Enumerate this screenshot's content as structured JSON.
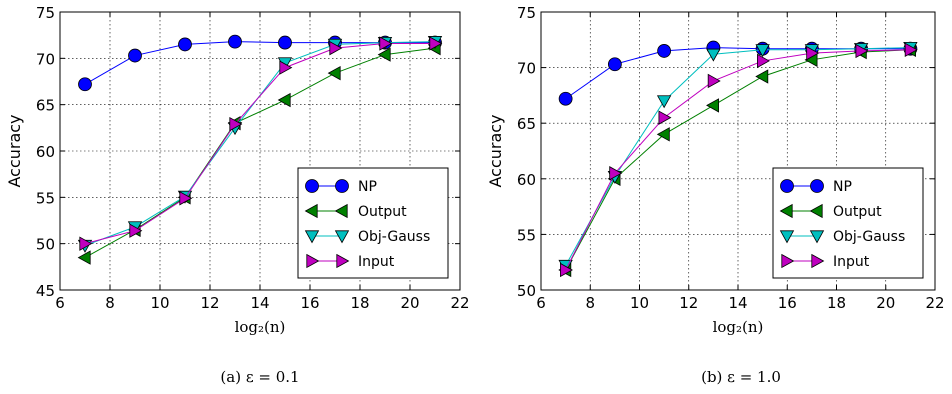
{
  "chart_data": [
    {
      "type": "line",
      "caption": "(a) ε = 0.1",
      "xlabel": "log₂(n)",
      "ylabel": "Accuracy",
      "xlim": [
        6,
        22
      ],
      "ylim": [
        45,
        75
      ],
      "xticks": [
        6,
        8,
        10,
        12,
        14,
        16,
        18,
        20,
        22
      ],
      "yticks": [
        45,
        50,
        55,
        60,
        65,
        70,
        75
      ],
      "grid": true,
      "legend_position": "bottom-right",
      "x": [
        7,
        9,
        11,
        13,
        15,
        17,
        19,
        21
      ],
      "series": [
        {
          "name": "NP",
          "color": "#0000ff",
          "marker": "circle",
          "values": [
            67.2,
            70.3,
            71.5,
            71.8,
            71.7,
            71.7,
            71.7,
            71.7
          ]
        },
        {
          "name": "Output",
          "color": "#008000",
          "marker": "triangle-left",
          "values": [
            48.5,
            51.5,
            55.0,
            63.0,
            65.5,
            68.4,
            70.4,
            71.1
          ]
        },
        {
          "name": "Obj-Gauss",
          "color": "#00bfbf",
          "marker": "triangle-down",
          "values": [
            49.8,
            51.8,
            55.1,
            62.5,
            69.5,
            71.5,
            71.7,
            71.8
          ]
        },
        {
          "name": "Input",
          "color": "#bf00bf",
          "marker": "triangle-right",
          "values": [
            50.0,
            51.4,
            54.9,
            62.9,
            69.0,
            71.1,
            71.6,
            71.6
          ]
        }
      ]
    },
    {
      "type": "line",
      "caption": "(b) ε = 1.0",
      "xlabel": "log₂(n)",
      "ylabel": "Accuracy",
      "xlim": [
        6,
        22
      ],
      "ylim": [
        50,
        75
      ],
      "xticks": [
        6,
        8,
        10,
        12,
        14,
        16,
        18,
        20,
        22
      ],
      "yticks": [
        50,
        55,
        60,
        65,
        70,
        75
      ],
      "grid": true,
      "legend_position": "bottom-right",
      "x": [
        7,
        9,
        11,
        13,
        15,
        17,
        19,
        21
      ],
      "series": [
        {
          "name": "NP",
          "color": "#0000ff",
          "marker": "circle",
          "values": [
            67.2,
            70.3,
            71.5,
            71.8,
            71.7,
            71.7,
            71.7,
            71.7
          ]
        },
        {
          "name": "Output",
          "color": "#008000",
          "marker": "triangle-left",
          "values": [
            51.8,
            60.0,
            64.0,
            66.6,
            69.2,
            70.7,
            71.4,
            71.6
          ]
        },
        {
          "name": "Obj-Gauss",
          "color": "#00bfbf",
          "marker": "triangle-down",
          "values": [
            52.2,
            60.2,
            67.0,
            71.2,
            71.6,
            71.6,
            71.7,
            71.8
          ]
        },
        {
          "name": "Input",
          "color": "#bf00bf",
          "marker": "triangle-right",
          "values": [
            51.8,
            60.5,
            65.5,
            68.8,
            70.6,
            71.3,
            71.5,
            71.6
          ]
        }
      ]
    }
  ]
}
